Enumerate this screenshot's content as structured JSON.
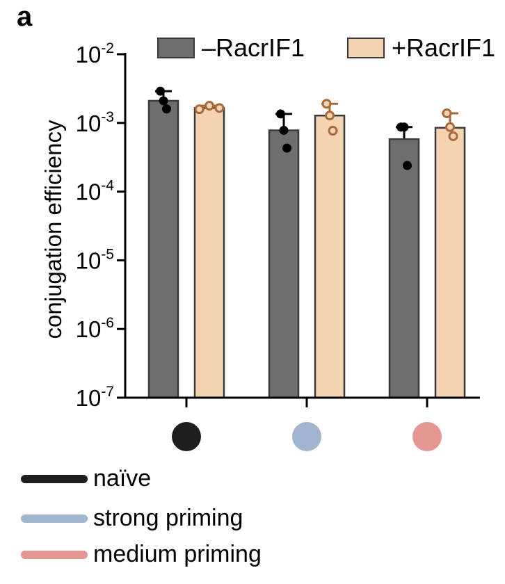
{
  "panel_label": "a",
  "legend": [
    {
      "label": "–RacrIF1",
      "color": "#6e6e6e"
    },
    {
      "label": "+RacrIF1",
      "color": "#f4d3b2"
    }
  ],
  "conditions": [
    {
      "label": "naïve",
      "color": "#1e1e1e"
    },
    {
      "label": "strong priming",
      "color": "#a2b5d0"
    },
    {
      "label": "medium priming",
      "color": "#e39692"
    }
  ],
  "colors": {
    "minus_bar": "#6e6e6e",
    "plus_bar": "#f4d3b2",
    "plus_point_edge": "#a8693a",
    "minus_point": "#000000",
    "bar_edge": "#3a3a3a"
  },
  "chart_data": {
    "type": "bar",
    "title": "",
    "ylabel": "conjugation efficiency",
    "xlabel": "",
    "yscale": "log",
    "ylim": [
      1e-07,
      0.01
    ],
    "yticks": [
      {
        "base": "10",
        "exp": "-2",
        "value": 0.01
      },
      {
        "base": "10",
        "exp": "-3",
        "value": 0.001
      },
      {
        "base": "10",
        "exp": "-4",
        "value": 0.0001
      },
      {
        "base": "10",
        "exp": "-5",
        "value": 1e-05
      },
      {
        "base": "10",
        "exp": "-6",
        "value": 1e-06
      },
      {
        "base": "10",
        "exp": "-7",
        "value": 1e-07
      }
    ],
    "categories": [
      "naïve",
      "strong priming",
      "medium priming"
    ],
    "series": [
      {
        "name": "–RacrIF1",
        "values": [
          0.0021,
          0.00078,
          0.00058
        ],
        "errors_upper": [
          0.0029,
          0.00135,
          0.00087
        ],
        "points": [
          [
            0.0029,
            0.0021,
            0.0016
          ],
          [
            0.00135,
            0.00078,
            0.00043
          ],
          [
            0.00087,
            0.00087,
            0.00024
          ]
        ]
      },
      {
        "name": "+RacrIF1",
        "values": [
          0.00165,
          0.00128,
          0.00085
        ],
        "errors_upper": [
          0.00178,
          0.0019,
          0.00138
        ],
        "points": [
          [
            0.00158,
            0.00178,
            0.00165
          ],
          [
            0.0019,
            0.00128,
            0.00077
          ],
          [
            0.00138,
            0.00087,
            0.00064
          ]
        ]
      }
    ]
  }
}
